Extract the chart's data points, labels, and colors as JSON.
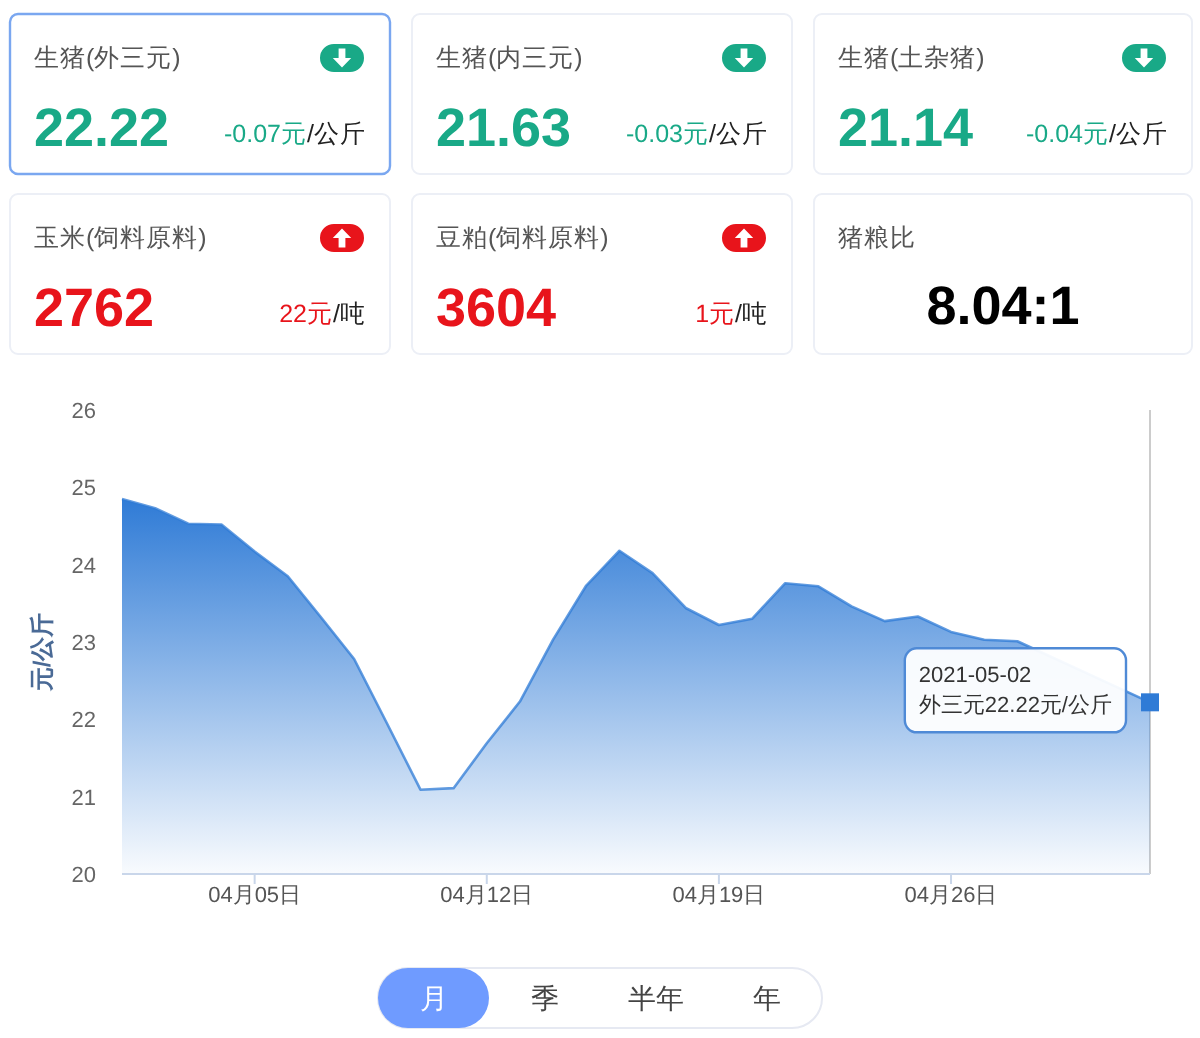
{
  "chart_data": [
    {
      "type": "other",
      "title": "生猪(外三元)",
      "annotations": [
        "22.22",
        "-0.07元",
        "/公斤"
      ],
      "color": "#19a987"
    },
    {
      "type": "other",
      "title": "生猪(内三元)",
      "annotations": [
        "21.63",
        "-0.03元",
        "/公斤"
      ],
      "color": "#19a987"
    },
    {
      "type": "other",
      "title": "生猪(土杂猪)",
      "annotations": [
        "21.14",
        "-0.04元",
        "/公斤"
      ],
      "color": "#19a987"
    },
    {
      "type": "other",
      "title": "玉米(饲料原料)",
      "annotations": [
        "2762",
        "22元",
        "/吨"
      ],
      "color": "#e8141b"
    },
    {
      "type": "other",
      "title": "豆粕(饲料原料)",
      "annotations": [
        "3604",
        "1元",
        "/吨"
      ],
      "color": "#e8141b"
    },
    {
      "type": "other",
      "title": "猪粮比",
      "annotations": [
        "8.04:1"
      ],
      "color": "#000000"
    },
    {
      "type": "area",
      "ylabel": "元/公斤",
      "x": [
        "2021-04-01",
        "2021-04-02",
        "2021-04-03",
        "2021-04-04",
        "2021-04-05",
        "2021-04-06",
        "2021-04-07",
        "2021-04-08",
        "2021-04-09",
        "2021-04-10",
        "2021-04-11",
        "2021-04-12",
        "2021-04-13",
        "2021-04-14",
        "2021-04-15",
        "2021-04-16",
        "2021-04-17",
        "2021-04-18",
        "2021-04-19",
        "2021-04-20",
        "2021-04-21",
        "2021-04-22",
        "2021-04-23",
        "2021-04-24",
        "2021-04-25",
        "2021-04-26",
        "2021-04-27",
        "2021-04-28",
        "2021-04-29",
        "2021-04-30",
        "2021-05-01",
        "2021-05-02"
      ],
      "series": [
        {
          "color": "#2f7bd6",
          "values": [
            24.85,
            24.73,
            24.53,
            24.52,
            24.17,
            23.85,
            23.32,
            22.78,
            21.94,
            21.09,
            21.11,
            21.69,
            22.23,
            23.03,
            23.73,
            24.18,
            23.89,
            23.44,
            23.22,
            23.3,
            23.76,
            23.72,
            23.46,
            23.27,
            23.33,
            23.13,
            23.03,
            23.01,
            null,
            null,
            null,
            22.22
          ]
        },
        {
          "type": "scatter",
          "x": [
            "2021-05-02"
          ],
          "values": [
            22.22
          ],
          "color": "#2f7bd6",
          "marker": "square"
        }
      ],
      "xlim": [
        "2021-04-01",
        "2021-05-02"
      ],
      "xticks": [
        {
          "value": "2021-04-05",
          "label": "04月05日"
        },
        {
          "value": "2021-04-12",
          "label": "04月12日"
        },
        {
          "value": "2021-04-19",
          "label": "04月19日"
        },
        {
          "value": "2021-04-26",
          "label": "04月26日"
        }
      ],
      "ylim": [
        20,
        26
      ],
      "yticks": [
        20,
        21,
        22,
        23,
        24,
        25,
        26
      ],
      "ref_lines": [
        {
          "axis": "x",
          "value": "2021-05-02",
          "color": "#cccccc"
        }
      ],
      "annotations": [
        {
          "text": "2021-05-02\n外三元22.22元/公斤",
          "x": "2021-05-02",
          "y": 22.22
        }
      ]
    },
    {
      "type": "other",
      "annotations": [
        "月",
        "季",
        "半年",
        "年"
      ]
    }
  ]
}
